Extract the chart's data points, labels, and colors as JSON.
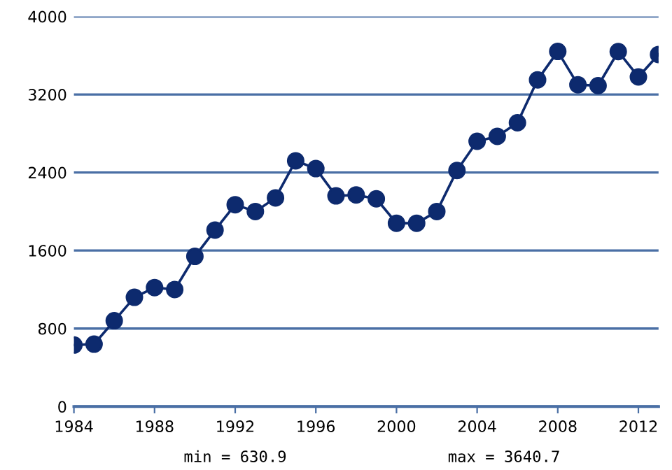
{
  "chart_data": {
    "type": "line",
    "x": [
      1984,
      1985,
      1986,
      1987,
      1988,
      1989,
      1990,
      1991,
      1992,
      1993,
      1994,
      1995,
      1996,
      1997,
      1998,
      1999,
      2000,
      2001,
      2002,
      2003,
      2004,
      2005,
      2006,
      2007,
      2008,
      2009,
      2010,
      2011,
      2012,
      2013
    ],
    "series": [
      {
        "color": "#0d2a6e",
        "values": [
          630.9,
          640,
          880,
          1120,
          1220,
          1200,
          1540,
          1810,
          2070,
          2000,
          2140,
          2520,
          2440,
          2160,
          2170,
          2130,
          1880,
          1880,
          2000,
          2420,
          2720,
          2770,
          2910,
          3350,
          3640.7,
          3300,
          3290,
          3640,
          3380,
          3610
        ]
      }
    ],
    "xlim": [
      1984,
      2013
    ],
    "xticks": [
      1984,
      1988,
      1992,
      1996,
      2000,
      2004,
      2008,
      2012
    ],
    "ylim": [
      0,
      4000
    ],
    "yticks": [
      0,
      800,
      1600,
      2400,
      3200,
      4000
    ],
    "grid": "y",
    "marker": "circle",
    "line_style": "solid",
    "legend": false,
    "annotations": [
      "min = 630.9",
      "max = 3640.7"
    ]
  }
}
